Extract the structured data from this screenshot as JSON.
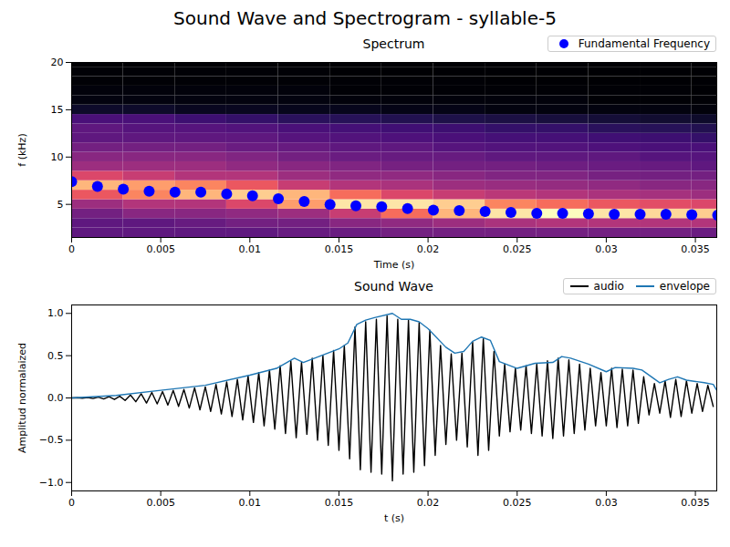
{
  "title": "Sound Wave and Spectrogram - syllable-5",
  "chart_data": [
    {
      "type": "heatmap",
      "title": "Spectrum",
      "x_label": "Time (s)",
      "y_label": "f (kHz)",
      "xlim": [
        0,
        0.0362
      ],
      "ylim": [
        1.5,
        20
      ],
      "xticks": [
        0,
        0.005,
        0.01,
        0.015,
        0.02,
        0.025,
        0.03,
        0.035
      ],
      "yticks": [
        5,
        10,
        15,
        20
      ],
      "legend": "upper right",
      "cells": {
        "t": [
          0.00145,
          0.00435,
          0.00725,
          0.01015,
          0.01305,
          0.01595,
          0.01885,
          0.02175,
          0.02465,
          0.02755,
          0.03045,
          0.03335,
          0.03625
        ],
        "f": [
          2,
          3,
          4,
          5,
          6,
          7,
          8,
          9,
          10,
          11,
          12,
          13,
          14,
          15,
          16,
          17,
          18,
          19,
          20
        ],
        "values": [
          [
            0.3,
            0.3,
            0.35,
            0.45,
            0.65,
            0.85,
            0.6,
            0.45,
            0.4,
            0.35,
            0.3,
            0.3,
            0.25,
            0.1,
            0.05,
            0.04,
            0.03,
            0.03,
            0.02
          ],
          [
            0.3,
            0.3,
            0.4,
            0.5,
            0.75,
            0.8,
            0.55,
            0.45,
            0.4,
            0.35,
            0.3,
            0.28,
            0.25,
            0.1,
            0.05,
            0.04,
            0.03,
            0.03,
            0.02
          ],
          [
            0.3,
            0.32,
            0.4,
            0.5,
            0.85,
            0.75,
            0.5,
            0.45,
            0.4,
            0.35,
            0.3,
            0.28,
            0.22,
            0.08,
            0.05,
            0.04,
            0.03,
            0.03,
            0.02
          ],
          [
            0.3,
            0.35,
            0.42,
            0.6,
            0.9,
            0.65,
            0.5,
            0.42,
            0.38,
            0.33,
            0.3,
            0.27,
            0.2,
            0.08,
            0.05,
            0.04,
            0.03,
            0.03,
            0.02
          ],
          [
            0.32,
            0.35,
            0.45,
            0.8,
            0.85,
            0.55,
            0.45,
            0.4,
            0.35,
            0.32,
            0.28,
            0.25,
            0.18,
            0.07,
            0.05,
            0.04,
            0.03,
            0.03,
            0.02
          ],
          [
            0.33,
            0.4,
            0.55,
            0.95,
            0.7,
            0.5,
            0.42,
            0.38,
            0.33,
            0.3,
            0.27,
            0.24,
            0.17,
            0.07,
            0.04,
            0.03,
            0.03,
            0.02,
            0.02
          ],
          [
            0.35,
            0.42,
            0.7,
            0.95,
            0.6,
            0.48,
            0.42,
            0.36,
            0.32,
            0.3,
            0.26,
            0.23,
            0.16,
            0.06,
            0.04,
            0.03,
            0.03,
            0.02,
            0.02
          ],
          [
            0.35,
            0.45,
            0.85,
            0.9,
            0.55,
            0.45,
            0.4,
            0.35,
            0.32,
            0.28,
            0.25,
            0.22,
            0.15,
            0.06,
            0.04,
            0.03,
            0.03,
            0.02,
            0.02
          ],
          [
            0.35,
            0.48,
            0.95,
            0.75,
            0.52,
            0.44,
            0.38,
            0.35,
            0.3,
            0.27,
            0.24,
            0.2,
            0.14,
            0.05,
            0.04,
            0.03,
            0.02,
            0.02,
            0.02
          ],
          [
            0.35,
            0.5,
            1.0,
            0.7,
            0.5,
            0.43,
            0.38,
            0.34,
            0.3,
            0.27,
            0.24,
            0.2,
            0.13,
            0.05,
            0.04,
            0.03,
            0.02,
            0.02,
            0.02
          ],
          [
            0.35,
            0.5,
            0.95,
            0.65,
            0.48,
            0.42,
            0.36,
            0.33,
            0.3,
            0.26,
            0.23,
            0.18,
            0.12,
            0.05,
            0.03,
            0.03,
            0.02,
            0.02,
            0.02
          ],
          [
            0.35,
            0.5,
            0.92,
            0.62,
            0.47,
            0.4,
            0.35,
            0.32,
            0.28,
            0.25,
            0.22,
            0.17,
            0.11,
            0.05,
            0.03,
            0.03,
            0.02,
            0.02,
            0.02
          ],
          [
            0.33,
            0.5,
            0.9,
            0.6,
            0.45,
            0.4,
            0.35,
            0.3,
            0.28,
            0.25,
            0.2,
            0.16,
            0.1,
            0.04,
            0.03,
            0.02,
            0.02,
            0.02,
            0.02
          ]
        ]
      },
      "series": [
        {
          "name": "Fundamental Frequency",
          "type": "scatter",
          "marker": "circle",
          "color": "#0000ff",
          "x": [
            0,
            0.00145,
            0.0029,
            0.00435,
            0.0058,
            0.00725,
            0.0087,
            0.01015,
            0.0116,
            0.01305,
            0.0145,
            0.01595,
            0.0174,
            0.01885,
            0.0203,
            0.02175,
            0.0232,
            0.02465,
            0.0261,
            0.02755,
            0.029,
            0.03045,
            0.0319,
            0.03335,
            0.0348,
            0.03625
          ],
          "values": [
            7.4,
            6.9,
            6.6,
            6.4,
            6.3,
            6.3,
            6.1,
            5.9,
            5.6,
            5.3,
            5.0,
            4.85,
            4.75,
            4.55,
            4.4,
            4.35,
            4.25,
            4.15,
            4.05,
            4.05,
            4.0,
            3.95,
            3.95,
            3.95,
            3.9,
            3.85
          ]
        }
      ]
    },
    {
      "type": "line",
      "title": "Sound Wave",
      "x_label": "t (s)",
      "y_label": "Amplitud normalaized",
      "xlim": [
        0,
        0.0362
      ],
      "ylim": [
        -1.1,
        1.1
      ],
      "xticks": [
        0,
        0.005,
        0.01,
        0.015,
        0.02,
        0.025,
        0.03,
        0.035
      ],
      "yticks": [
        {
          "value": -1,
          "label": "−1.0"
        },
        {
          "value": -0.5,
          "label": "−0.5"
        },
        {
          "value": 0,
          "label": "0.0"
        },
        {
          "value": 0.5,
          "label": "0.5"
        },
        {
          "value": 1,
          "label": "1.0"
        }
      ],
      "legend": "upper right",
      "series": [
        {
          "name": "audio",
          "type": "line",
          "line_style": "solid",
          "color": "#000000",
          "x": [
            0,
            0.0003,
            0.0006,
            0.0009,
            0.0012,
            0.0015,
            0.0018,
            0.0021,
            0.0024,
            0.0027,
            0.003,
            0.0033,
            0.0036,
            0.0039,
            0.0042,
            0.0045,
            0.0048,
            0.0051,
            0.0054,
            0.0057,
            0.006,
            0.0063,
            0.0066,
            0.0069,
            0.0072,
            0.0075,
            0.0078,
            0.0081,
            0.0084,
            0.0087,
            0.009,
            0.0093,
            0.0096,
            0.0099,
            0.0102,
            0.0105,
            0.0108,
            0.0111,
            0.0114,
            0.0117,
            0.012,
            0.0123,
            0.0126,
            0.0129,
            0.0132,
            0.0135,
            0.0138,
            0.0141,
            0.0144,
            0.0147,
            0.015,
            0.0153,
            0.0156,
            0.0159,
            0.0162,
            0.0165,
            0.0168,
            0.0171,
            0.0174,
            0.0177,
            0.018,
            0.0183,
            0.0186,
            0.0189,
            0.0192,
            0.0195,
            0.0198,
            0.0201,
            0.0204,
            0.0207,
            0.021,
            0.0213,
            0.0216,
            0.0219,
            0.0222,
            0.0225,
            0.0228,
            0.0231,
            0.0234,
            0.0237,
            0.024,
            0.0243,
            0.0246,
            0.0249,
            0.0252,
            0.0255,
            0.0258,
            0.0261,
            0.0264,
            0.0267,
            0.027,
            0.0273,
            0.0276,
            0.0279,
            0.0282,
            0.0285,
            0.0288,
            0.0291,
            0.0294,
            0.0297,
            0.03,
            0.0303,
            0.0306,
            0.0309,
            0.0312,
            0.0315,
            0.0318,
            0.0321,
            0.0324,
            0.0327,
            0.033,
            0.0333,
            0.0336,
            0.0339,
            0.0342,
            0.0345,
            0.0348,
            0.0351,
            0.0354,
            0.0357,
            0.036
          ],
          "values": [
            0,
            0.002,
            -0.003,
            0.005,
            -0.007,
            0.01,
            -0.012,
            0.015,
            -0.018,
            0.02,
            -0.03,
            0.035,
            -0.045,
            0.05,
            -0.06,
            0.065,
            -0.07,
            0.075,
            -0.085,
            0.09,
            -0.1,
            0.1,
            -0.12,
            0.12,
            -0.14,
            0.13,
            -0.16,
            0.16,
            -0.19,
            0.19,
            -0.22,
            0.22,
            -0.26,
            0.26,
            -0.29,
            0.3,
            -0.33,
            0.33,
            -0.37,
            0.38,
            -0.42,
            0.44,
            -0.47,
            0.42,
            -0.43,
            0.47,
            -0.5,
            0.5,
            -0.56,
            0.56,
            -0.62,
            0.62,
            -0.72,
            0.84,
            -0.85,
            0.9,
            -0.88,
            0.93,
            -0.9,
            0.97,
            -0.98,
            0.93,
            -0.9,
            0.92,
            -0.88,
            0.89,
            -0.8,
            0.8,
            -0.68,
            0.62,
            -0.55,
            0.52,
            -0.5,
            0.53,
            -0.58,
            0.66,
            -0.68,
            0.7,
            -0.62,
            0.55,
            -0.45,
            0.4,
            -0.4,
            0.35,
            -0.38,
            0.38,
            -0.42,
            0.4,
            -0.45,
            0.44,
            -0.48,
            0.47,
            -0.45,
            0.45,
            -0.42,
            0.4,
            -0.38,
            0.35,
            -0.33,
            0.3,
            -0.33,
            0.35,
            -0.35,
            0.34,
            -0.33,
            0.33,
            -0.3,
            0.25,
            -0.2,
            0.17,
            -0.18,
            0.2,
            -0.23,
            0.22,
            -0.22,
            0.2,
            -0.18,
            0.17,
            -0.16,
            0.15,
            -0.1
          ]
        },
        {
          "name": "envelope",
          "type": "line",
          "line_style": "solid",
          "color": "#1f77b4",
          "x": [
            0,
            0.0025,
            0.005,
            0.0075,
            0.01,
            0.0115,
            0.0125,
            0.013,
            0.014,
            0.015,
            0.0155,
            0.016,
            0.0165,
            0.017,
            0.018,
            0.0185,
            0.019,
            0.0195,
            0.02,
            0.021,
            0.0215,
            0.022,
            0.0225,
            0.023,
            0.0235,
            0.024,
            0.025,
            0.026,
            0.027,
            0.0275,
            0.028,
            0.029,
            0.03,
            0.0305,
            0.0315,
            0.032,
            0.033,
            0.0335,
            0.034,
            0.0345,
            0.0355,
            0.036,
            0.0362
          ],
          "values": [
            0,
            0.03,
            0.09,
            0.15,
            0.27,
            0.35,
            0.47,
            0.42,
            0.5,
            0.58,
            0.65,
            0.87,
            0.92,
            0.95,
            1.0,
            0.93,
            0.93,
            0.9,
            0.82,
            0.6,
            0.53,
            0.55,
            0.67,
            0.72,
            0.68,
            0.43,
            0.35,
            0.41,
            0.42,
            0.49,
            0.47,
            0.4,
            0.31,
            0.36,
            0.35,
            0.33,
            0.18,
            0.22,
            0.25,
            0.21,
            0.18,
            0.16,
            0.09
          ]
        }
      ]
    }
  ]
}
